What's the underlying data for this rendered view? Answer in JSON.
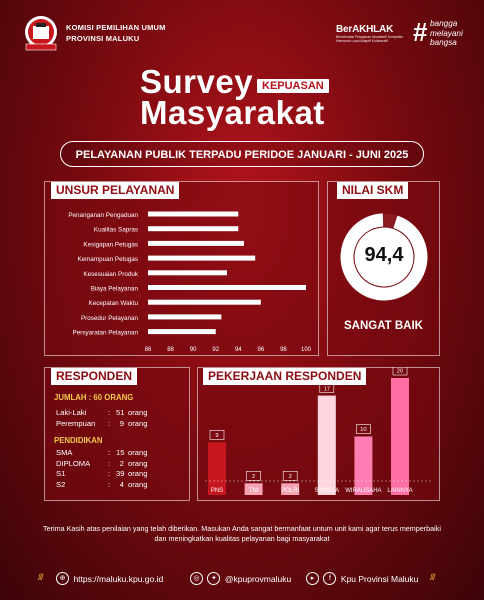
{
  "header": {
    "org_line1": "KOMISI PEMILIHAN UMUM",
    "org_line2": "PROVINSI MALUKU",
    "akhlak_title": "BerAKHLAK",
    "akhlak_sub1": "Berorientasi Pelayanan Akuntabel Kompeten",
    "akhlak_sub2": "Harmonis Loyal Adaptif Kolaboratif",
    "bangga_hash": "#",
    "bangga_w1": "bangga",
    "bangga_w2": "melayani",
    "bangga_w3": "bangsa",
    "title_word1": "Survey",
    "title_badge": "KEPUASAN",
    "title_word2": "Masyarakat",
    "period": "PELAYANAN PUBLIK TERPADU PERIDOE JANUARI - JUNI 2025"
  },
  "unsur": {
    "label": "UNSUR PELAYANAN"
  },
  "skm": {
    "label": "NILAI SKM",
    "value": "94,4",
    "description": "SANGAT BAIK",
    "score": 94.4
  },
  "responden": {
    "label": "RESPONDEN",
    "jumlah": "JUMLAH : 60 ORANG",
    "gender": [
      {
        "name": "Laki-Laki",
        "sep": ":",
        "count": "51",
        "unit": "orang"
      },
      {
        "name": "Perempuan",
        "sep": ":",
        "count": "9",
        "unit": "orang"
      }
    ],
    "pendidikan_label": "PENDIDIKAN",
    "pendidikan": [
      {
        "name": "SMA",
        "sep": ":",
        "count": "15",
        "unit": "orang"
      },
      {
        "name": "DIPLOMA",
        "sep": ":",
        "count": "2",
        "unit": "orang"
      },
      {
        "name": "S1",
        "sep": ":",
        "count": "39",
        "unit": "orang"
      },
      {
        "name": "S2",
        "sep": ":",
        "count": "4",
        "unit": "orang"
      }
    ]
  },
  "pekerjaan": {
    "label": "PEKERJAAN RESPONDEN"
  },
  "footnote": "Terima Kasih atas penilaian yang telah diberikan. Masukan Anda sangat bermanfaat untum unit kami agar terus memperbaiki dan meningkatkan kualitas pelayanan bagi masyarakat",
  "footer": {
    "url": "https://maluku.kpu.go.id",
    "handle": "@kpuprovmaluku",
    "page": "Kpu Provinsi Maluku"
  },
  "colors": {
    "accent": "#b3141c",
    "bar_pns": "#c8161e",
    "bar_light": "#f5a3b3",
    "bar_swasta": "#ffd6de",
    "bar_wira": "#ff7db0",
    "bar_lain": "#ff6fa3"
  },
  "chart_data": [
    {
      "type": "bar",
      "orientation": "horizontal",
      "title": "UNSUR PELAYANAN",
      "categories": [
        "Penanganan Pengaduan",
        "Kualitas Sapras",
        "Kesigapan Petugas",
        "Kemampuan Petugas",
        "Kesesuaian Produk",
        "Biaya Pelayanan",
        "Kecepatan Waktu",
        "Prosedur Pelayanan",
        "Persyaratan Pelayanan"
      ],
      "values": [
        94,
        94,
        94.5,
        95.5,
        93,
        100,
        96,
        92.5,
        92
      ],
      "xlim": [
        86,
        100
      ],
      "xticks": [
        "86",
        "88",
        "90",
        "92",
        "94",
        "96",
        "98",
        "100"
      ]
    },
    {
      "type": "pie",
      "title": "NILAI SKM",
      "values": [
        94.4,
        5.6
      ]
    },
    {
      "type": "bar",
      "title": "PEKERJAAN RESPONDEN",
      "categories": [
        "PNS",
        "TNI",
        "POLRI",
        "SWASTA",
        "WIRAUSAHA",
        "LAINNYA"
      ],
      "values": [
        9,
        2,
        2,
        17,
        10,
        20
      ]
    }
  ]
}
